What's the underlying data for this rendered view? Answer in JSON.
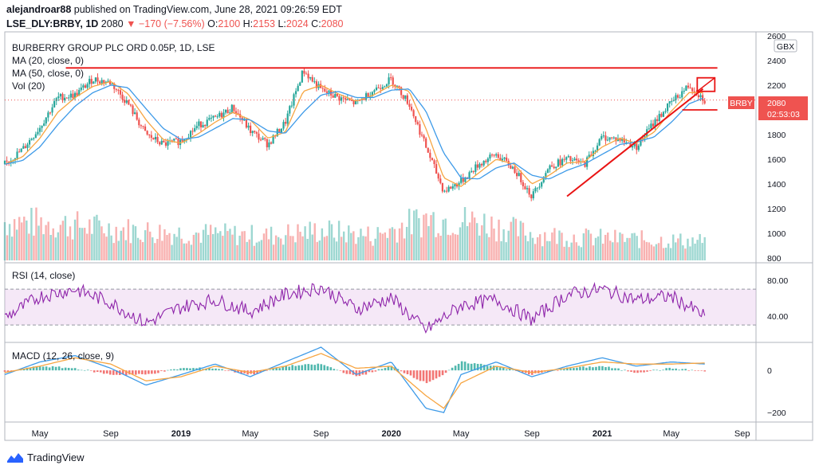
{
  "header": {
    "author": "alejandroar88",
    "published_text": "published on TradingView.com, June 28, 2021 09:26:59 EDT",
    "symbol": "LSE_DLY:BRBY, 1D",
    "price": "2080",
    "change": "−170 (−7.56%)",
    "o_label": "O:",
    "o_value": "2100",
    "h_label": "H:",
    "h_value": "2153",
    "l_label": "L:",
    "l_value": "2024",
    "c_label": "C:",
    "c_value": "2080"
  },
  "legend": {
    "title": "BURBERRY GROUP PLC ORD 0.05P, 1D, LSE",
    "ma20": "MA (20, close, 0)",
    "ma50": "MA (50, close, 0)",
    "vol": "Vol (20)",
    "rsi": "RSI (14, close)",
    "macd": "MACD (12, 26, close, 9)"
  },
  "price_axis": {
    "currency": "GBX",
    "ticks": [
      "2600",
      "2400",
      "2200",
      "2000",
      "1800",
      "1600",
      "1400",
      "1200",
      "1000",
      "800"
    ],
    "tag_symbol": "BRBY",
    "tag_price": "2080",
    "tag_time": "02:53:03"
  },
  "rsi_axis": {
    "ticks": [
      "80.00",
      "40.00"
    ]
  },
  "macd_axis": {
    "ticks": [
      "0",
      "−200"
    ]
  },
  "time_axis": {
    "labels": [
      "May",
      "Sep",
      "2019",
      "May",
      "Sep",
      "2020",
      "May",
      "Sep",
      "2021",
      "May",
      "Sep"
    ],
    "bold": [
      false,
      false,
      true,
      false,
      false,
      true,
      false,
      false,
      true,
      false,
      false
    ]
  },
  "footer": {
    "brand": "TradingView"
  },
  "colors": {
    "up": "#26a69a",
    "down": "#ef5350",
    "ma20": "#f7a541",
    "ma50": "#3d9ae8",
    "rsi": "#8e24aa",
    "annotation": "#e91414",
    "axis_tag": "#ef5350"
  },
  "chart_data": {
    "type": "line",
    "x_range": [
      "2018-03",
      "2021-09"
    ],
    "price": {
      "ylim": [
        800,
        2600
      ],
      "x": [
        "2018-03-01",
        "2018-04-01",
        "2018-05-01",
        "2018-06-01",
        "2018-07-01",
        "2018-08-01",
        "2018-09-01",
        "2018-10-01",
        "2018-11-01",
        "2018-12-01",
        "2019-01-01",
        "2019-02-01",
        "2019-03-01",
        "2019-04-01",
        "2019-05-01",
        "2019-06-01",
        "2019-07-01",
        "2019-08-01",
        "2019-09-01",
        "2019-10-01",
        "2019-11-01",
        "2019-12-01",
        "2020-01-01",
        "2020-02-01",
        "2020-03-01",
        "2020-04-01",
        "2020-05-01",
        "2020-06-01",
        "2020-07-01",
        "2020-08-01",
        "2020-09-01",
        "2020-10-01",
        "2020-11-01",
        "2020-12-01",
        "2021-01-01",
        "2021-02-01",
        "2021-03-01",
        "2021-04-01",
        "2021-05-01",
        "2021-06-01",
        "2021-06-28"
      ],
      "close": [
        1560,
        1680,
        1860,
        2100,
        2120,
        2250,
        2220,
        2050,
        1800,
        1720,
        1750,
        1880,
        1930,
        2020,
        1830,
        1720,
        1900,
        2320,
        2160,
        2100,
        2050,
        2160,
        2250,
        2050,
        1700,
        1340,
        1420,
        1560,
        1640,
        1520,
        1300,
        1540,
        1600,
        1560,
        1780,
        1760,
        1700,
        1900,
        2060,
        2200,
        2080
      ],
      "ma20": [
        1560,
        1620,
        1770,
        1980,
        2100,
        2190,
        2230,
        2130,
        1920,
        1760,
        1730,
        1810,
        1900,
        1980,
        1920,
        1770,
        1820,
        2150,
        2200,
        2130,
        2070,
        2120,
        2200,
        2150,
        1850,
        1450,
        1380,
        1490,
        1600,
        1560,
        1400,
        1470,
        1570,
        1580,
        1700,
        1770,
        1730,
        1820,
        1990,
        2140,
        2140
      ],
      "ma50": [
        1560,
        1590,
        1700,
        1880,
        2030,
        2140,
        2200,
        2180,
        2010,
        1850,
        1760,
        1780,
        1850,
        1930,
        1920,
        1830,
        1810,
        1980,
        2120,
        2150,
        2100,
        2100,
        2160,
        2170,
        1990,
        1650,
        1450,
        1440,
        1530,
        1570,
        1470,
        1440,
        1510,
        1560,
        1640,
        1720,
        1740,
        1780,
        1900,
        2050,
        2100
      ],
      "annotations": [
        {
          "type": "resistance",
          "value": 2340,
          "from": "2018-06-15",
          "to": "2021-07-20"
        },
        {
          "type": "trendline",
          "from": [
            "2020-11-01",
            1300
          ],
          "to": [
            "2021-06-25",
            2170
          ]
        },
        {
          "type": "level",
          "value": 2000,
          "from": "2021-05-20",
          "to": "2021-07-20"
        }
      ]
    },
    "volume": {
      "x": [
        "2018-03",
        "2018-06",
        "2018-09",
        "2018-12",
        "2019-03",
        "2019-06",
        "2019-09",
        "2019-12",
        "2020-03",
        "2020-06",
        "2020-09",
        "2020-12",
        "2021-03",
        "2021-06"
      ],
      "values": [
        2.2,
        2.1,
        1.8,
        1.6,
        1.5,
        1.4,
        1.7,
        1.4,
        2.4,
        2.2,
        1.5,
        1.3,
        1.2,
        1.1
      ]
    },
    "rsi": {
      "ylim": [
        15,
        95
      ],
      "bands": [
        70,
        30
      ],
      "x": [
        "2018-03",
        "2018-05",
        "2018-07",
        "2018-09",
        "2018-11",
        "2019-01",
        "2019-03",
        "2019-05",
        "2019-07",
        "2019-09",
        "2019-11",
        "2020-01",
        "2020-03",
        "2020-05",
        "2020-07",
        "2020-09",
        "2020-11",
        "2021-01",
        "2021-03",
        "2021-05",
        "2021-06-28"
      ],
      "values": [
        38,
        62,
        70,
        55,
        32,
        50,
        58,
        45,
        64,
        72,
        48,
        60,
        24,
        52,
        58,
        36,
        64,
        70,
        58,
        62,
        40
      ]
    },
    "macd": {
      "ylim": [
        -230,
        110
      ],
      "x": [
        "2018-03",
        "2018-05",
        "2018-07",
        "2018-09",
        "2018-11",
        "2019-01",
        "2019-03",
        "2019-05",
        "2019-07",
        "2019-09",
        "2019-11",
        "2020-01",
        "2020-03",
        "2020-04",
        "2020-05",
        "2020-07",
        "2020-09",
        "2020-11",
        "2021-01",
        "2021-03",
        "2021-05",
        "2021-06-28"
      ],
      "macd": [
        -20,
        40,
        70,
        10,
        -70,
        -20,
        30,
        -30,
        40,
        110,
        -20,
        40,
        -180,
        -200,
        -20,
        40,
        -30,
        20,
        60,
        20,
        40,
        30
      ],
      "signal": [
        -10,
        20,
        60,
        30,
        -50,
        -30,
        20,
        -10,
        20,
        80,
        10,
        20,
        -120,
        -180,
        -60,
        20,
        -10,
        10,
        40,
        30,
        30,
        35
      ],
      "histogram": [
        -10,
        20,
        10,
        -20,
        -20,
        10,
        10,
        -20,
        20,
        30,
        -30,
        20,
        -60,
        -20,
        40,
        20,
        -20,
        10,
        20,
        -10,
        10,
        -5
      ]
    }
  }
}
